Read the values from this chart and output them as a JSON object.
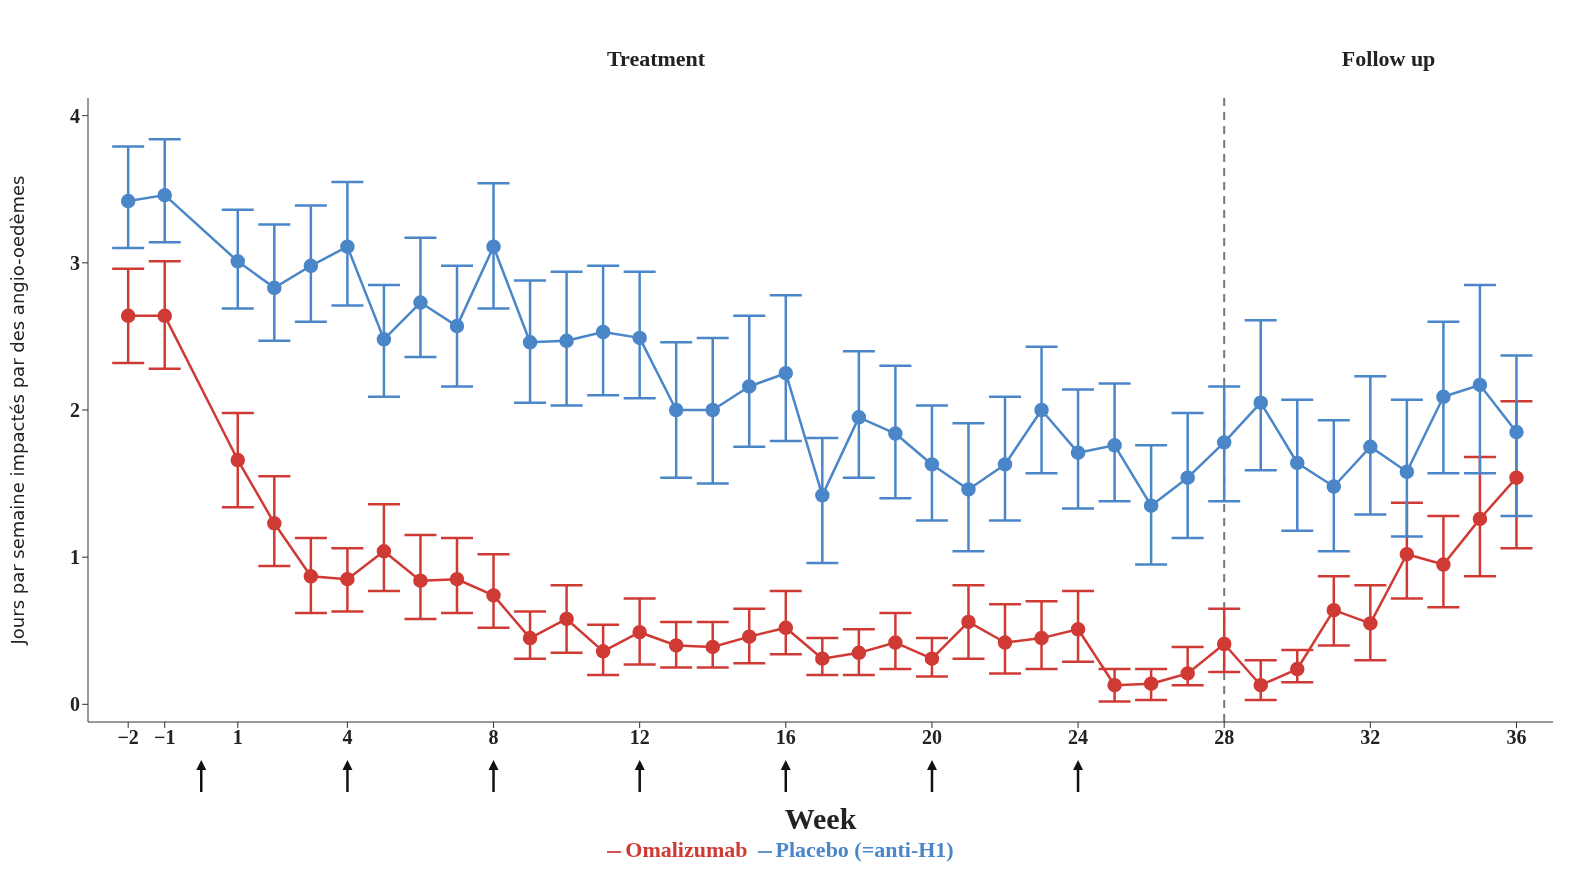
{
  "chart_data": {
    "type": "line",
    "xlabel": "Week",
    "ylabel": "Jours par semaine impactés par des angio-oedèmes",
    "annotations": [
      "Treatment",
      "Follow up"
    ],
    "x": [
      -2,
      -1,
      1,
      2,
      3,
      4,
      5,
      6,
      7,
      8,
      9,
      10,
      11,
      12,
      13,
      14,
      15,
      16,
      17,
      18,
      19,
      20,
      21,
      22,
      23,
      24,
      25,
      26,
      27,
      28,
      29,
      30,
      31,
      32,
      33,
      34,
      35,
      36
    ],
    "series": [
      {
        "name": "Omalizumab",
        "color": "#d03a35",
        "values": [
          2.64,
          2.64,
          1.66,
          1.23,
          0.87,
          0.85,
          1.04,
          0.84,
          0.85,
          0.74,
          0.45,
          0.58,
          0.36,
          0.49,
          0.4,
          0.39,
          0.46,
          0.52,
          0.31,
          0.35,
          0.42,
          0.31,
          0.56,
          0.42,
          0.45,
          0.51,
          0.13,
          0.14,
          0.21,
          0.41,
          0.13,
          0.24,
          0.64,
          0.55,
          1.02,
          0.95,
          1.26,
          1.54
        ],
        "errors": [
          [
            2.32,
            2.96
          ],
          [
            2.28,
            3.01
          ],
          [
            1.34,
            1.98
          ],
          [
            0.94,
            1.55
          ],
          [
            0.62,
            1.13
          ],
          [
            0.63,
            1.06
          ],
          [
            0.77,
            1.36
          ],
          [
            0.58,
            1.15
          ],
          [
            0.62,
            1.13
          ],
          [
            0.52,
            1.02
          ],
          [
            0.31,
            0.63
          ],
          [
            0.35,
            0.81
          ],
          [
            0.2,
            0.54
          ],
          [
            0.27,
            0.72
          ],
          [
            0.25,
            0.56
          ],
          [
            0.25,
            0.56
          ],
          [
            0.28,
            0.65
          ],
          [
            0.34,
            0.77
          ],
          [
            0.2,
            0.45
          ],
          [
            0.2,
            0.51
          ],
          [
            0.24,
            0.62
          ],
          [
            0.19,
            0.45
          ],
          [
            0.31,
            0.81
          ],
          [
            0.21,
            0.68
          ],
          [
            0.24,
            0.7
          ],
          [
            0.29,
            0.77
          ],
          [
            0.02,
            0.24
          ],
          [
            0.03,
            0.24
          ],
          [
            0.13,
            0.39
          ],
          [
            0.22,
            0.65
          ],
          [
            0.03,
            0.3
          ],
          [
            0.15,
            0.37
          ],
          [
            0.4,
            0.87
          ],
          [
            0.3,
            0.81
          ],
          [
            0.72,
            1.37
          ],
          [
            0.66,
            1.28
          ],
          [
            0.87,
            1.68
          ],
          [
            1.06,
            2.06
          ]
        ]
      },
      {
        "name": "Placebo (=anti-H1)",
        "color": "#4a86c8",
        "values": [
          3.42,
          3.46,
          3.01,
          2.83,
          2.98,
          3.11,
          2.48,
          2.73,
          2.57,
          3.11,
          2.46,
          2.47,
          2.53,
          2.49,
          2.0,
          2.0,
          2.16,
          2.25,
          1.42,
          1.95,
          1.84,
          1.63,
          1.46,
          1.63,
          2.0,
          1.71,
          1.76,
          1.35,
          1.54,
          1.78,
          2.05,
          1.64,
          1.48,
          1.75,
          1.58,
          2.09,
          2.17,
          1.85
        ],
        "errors": [
          [
            3.1,
            3.79
          ],
          [
            3.14,
            3.84
          ],
          [
            2.69,
            3.36
          ],
          [
            2.47,
            3.26
          ],
          [
            2.6,
            3.39
          ],
          [
            2.71,
            3.55
          ],
          [
            2.09,
            2.85
          ],
          [
            2.36,
            3.17
          ],
          [
            2.16,
            2.98
          ],
          [
            2.69,
            3.54
          ],
          [
            2.05,
            2.88
          ],
          [
            2.03,
            2.94
          ],
          [
            2.1,
            2.98
          ],
          [
            2.08,
            2.94
          ],
          [
            1.54,
            2.46
          ],
          [
            1.5,
            2.49
          ],
          [
            1.75,
            2.64
          ],
          [
            1.79,
            2.78
          ],
          [
            0.96,
            1.81
          ],
          [
            1.54,
            2.4
          ],
          [
            1.4,
            2.3
          ],
          [
            1.25,
            2.03
          ],
          [
            1.04,
            1.91
          ],
          [
            1.25,
            2.09
          ],
          [
            1.57,
            2.43
          ],
          [
            1.33,
            2.14
          ],
          [
            1.38,
            2.18
          ],
          [
            0.95,
            1.76
          ],
          [
            1.13,
            1.98
          ],
          [
            1.38,
            2.16
          ],
          [
            1.59,
            2.61
          ],
          [
            1.18,
            2.07
          ],
          [
            1.04,
            1.93
          ],
          [
            1.29,
            2.23
          ],
          [
            1.14,
            2.07
          ],
          [
            1.57,
            2.6
          ],
          [
            1.57,
            2.85
          ],
          [
            1.28,
            2.37
          ]
        ]
      }
    ],
    "xlim": [
      -3.1,
      37
    ],
    "xticks": [
      -2,
      -1,
      1,
      4,
      8,
      12,
      16,
      20,
      24,
      28,
      32,
      36
    ],
    "ylim": [
      -0.12,
      4.12
    ],
    "yticks": [
      0,
      1,
      2,
      3,
      4
    ],
    "ref_lines": [
      {
        "axis": "x",
        "value": 28,
        "color": "#777777",
        "line_style": "dashed"
      }
    ],
    "grid": false,
    "legend": "bottom",
    "marker": "circle",
    "line_style": "solid"
  }
}
